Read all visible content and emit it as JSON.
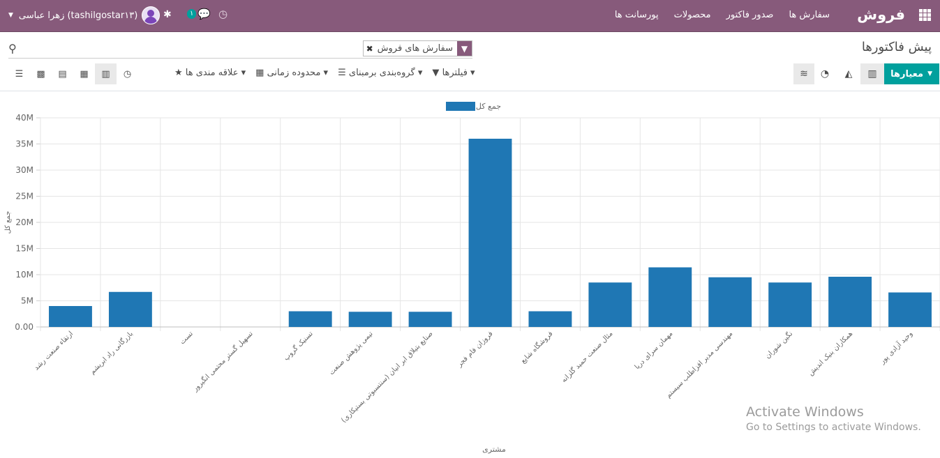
{
  "navbar": {
    "brand": "فروش",
    "menu": [
      "سفارش ها",
      "صدور فاکتور",
      "محصولات",
      "پورسانت ها"
    ],
    "user_name": "زهرا عباسی (tashilgostar۱۳)",
    "message_count": "۱"
  },
  "control_panel": {
    "title": "پیش فاکتورها",
    "search_facet": "سفارش های فروش",
    "measures_label": "معیارها",
    "filters": [
      "فیلترها",
      "گروه‌بندی برمبنای",
      "محدوده زمانی",
      "علاقه مندی ها"
    ]
  },
  "colors": {
    "navbar": "#875A7B",
    "primary": "#00A09D",
    "bar": "#1f77b4"
  },
  "icons": [
    "apps-icon",
    "user-avatar",
    "bug-icon",
    "chat-icon",
    "clock-icon",
    "search-icon",
    "filter-icon",
    "bar-chart-icon",
    "area-chart-icon",
    "pie-chart-icon",
    "database-icon",
    "list-icon",
    "kanban-icon",
    "calendar-icon",
    "table-icon",
    "activity-icon",
    "star-icon"
  ],
  "chart_data": {
    "type": "bar",
    "legend": "جمع کل",
    "xlabel": "مشتری",
    "ylabel": "جمع کل",
    "ylim": [
      0,
      40000000
    ],
    "yticks": [
      "0.00",
      "5M",
      "10M",
      "15M",
      "20M",
      "25M",
      "30M",
      "35M",
      "40M"
    ],
    "categories": [
      "ارتقاء صنعت رشد",
      "بازرگانی راد ابریشم",
      "تست",
      "تسهیل گستر محتمی انگیرور",
      "تسنیک گروپ",
      "تیمی پژوهش صنعت",
      "صنایع بتیلاق ابر انیان (سنتسبوتی بستیکاری)",
      "فروزان فام فجر",
      "فروشگاه شایع",
      "مثال صنعت حمید گلزانه",
      "مهمان سرای دریا",
      "مهندسی مدیر افزاطلب سیستم",
      "نگین شوران",
      "همکاران بنیک اندیش",
      "وحید آزادی پور"
    ],
    "values": [
      4000000,
      6700000,
      0,
      0,
      3000000,
      2900000,
      2900000,
      36000000,
      3000000,
      8500000,
      11400000,
      9500000,
      8500000,
      9600000,
      6600000
    ]
  },
  "watermark": {
    "line1": "Activate Windows",
    "line2": "Go to Settings to activate Windows."
  }
}
